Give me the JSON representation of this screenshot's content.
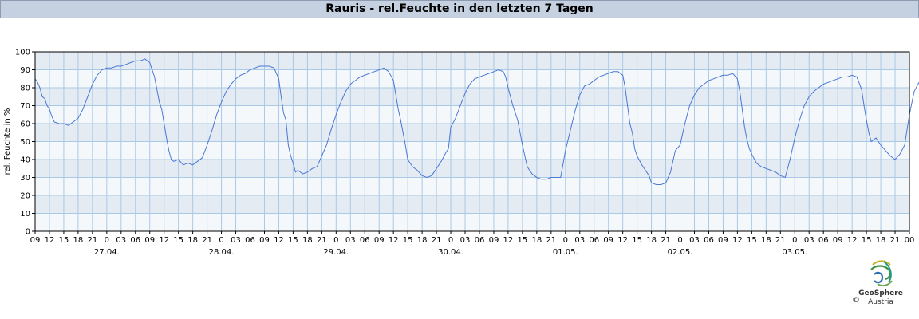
{
  "header": {
    "title": "Rauris - rel.Feuchte in den letzten 7 Tagen"
  },
  "footer": {
    "brand_line1": "GeoSphere",
    "brand_line2": "Austria",
    "copyright": "©"
  },
  "colors": {
    "line": "#4a78d6",
    "band": "#e5ebf2",
    "grid": "#a9c9e6",
    "title_bg": "#c5d1e1"
  },
  "chart_data": {
    "type": "line",
    "title": "Rauris - rel.Feuchte in den letzten 7 Tagen",
    "ylabel": "rel. Feuchte in %",
    "xlabel": "",
    "ylim": [
      0,
      100
    ],
    "y_ticks": [
      0,
      10,
      20,
      30,
      40,
      50,
      60,
      70,
      80,
      90,
      100
    ],
    "x_hour_labels": [
      "09",
      "12",
      "15",
      "18",
      "21",
      "0",
      "03",
      "06",
      "09",
      "12",
      "15",
      "18",
      "21",
      "0",
      "03",
      "06",
      "09",
      "12",
      "15",
      "18",
      "21",
      "0",
      "03",
      "06",
      "09",
      "12",
      "15",
      "18",
      "21",
      "0",
      "03",
      "06",
      "09",
      "12",
      "15",
      "18",
      "21",
      "0",
      "03",
      "06",
      "09",
      "12",
      "15",
      "18",
      "21",
      "0",
      "03",
      "06",
      "09",
      "12",
      "15",
      "18",
      "21",
      "0",
      "03",
      "06",
      "09",
      "12",
      "15",
      "18",
      "21",
      "00"
    ],
    "x_date_labels": [
      "27.04.",
      "28.04.",
      "29.04.",
      "30.04.",
      "01.05.",
      "02.05.",
      "03.05."
    ],
    "grid": true,
    "series": [
      {
        "values": [
          [
            0,
            85
          ],
          [
            0.5,
            83
          ],
          [
            1,
            80
          ],
          [
            1.5,
            75
          ],
          [
            2,
            74
          ],
          [
            2.5,
            70
          ],
          [
            3,
            68
          ],
          [
            3.5,
            64
          ],
          [
            4,
            61
          ],
          [
            5,
            60
          ],
          [
            6,
            60
          ],
          [
            7,
            59
          ],
          [
            8,
            61
          ],
          [
            9,
            63
          ],
          [
            10,
            68
          ],
          [
            11,
            75
          ],
          [
            12,
            82
          ],
          [
            13,
            87
          ],
          [
            14,
            90
          ],
          [
            15,
            91
          ],
          [
            16,
            91
          ],
          [
            17,
            92
          ],
          [
            18,
            92
          ],
          [
            19,
            93
          ],
          [
            20,
            94
          ],
          [
            21,
            95
          ],
          [
            22,
            95
          ],
          [
            23,
            96
          ],
          [
            24,
            94
          ],
          [
            25,
            86
          ],
          [
            26,
            72
          ],
          [
            26.5,
            68
          ],
          [
            27,
            60
          ],
          [
            27.5,
            52
          ],
          [
            28,
            45
          ],
          [
            28.5,
            40
          ],
          [
            29,
            39
          ],
          [
            30,
            40
          ],
          [
            31,
            37
          ],
          [
            32,
            38
          ],
          [
            33,
            37
          ],
          [
            34,
            39
          ],
          [
            35,
            41
          ],
          [
            36,
            48
          ],
          [
            37,
            56
          ],
          [
            38,
            65
          ],
          [
            39,
            72
          ],
          [
            40,
            78
          ],
          [
            41,
            82
          ],
          [
            42,
            85
          ],
          [
            43,
            87
          ],
          [
            44,
            88
          ],
          [
            45,
            90
          ],
          [
            46,
            91
          ],
          [
            47,
            92
          ],
          [
            48,
            92
          ],
          [
            49,
            92
          ],
          [
            50,
            91
          ],
          [
            51,
            85
          ],
          [
            51.5,
            75
          ],
          [
            52,
            66
          ],
          [
            52.5,
            62
          ],
          [
            53,
            48
          ],
          [
            53.5,
            42
          ],
          [
            54,
            38
          ],
          [
            54.5,
            33
          ],
          [
            55,
            34
          ],
          [
            56,
            32
          ],
          [
            57,
            33
          ],
          [
            58,
            35
          ],
          [
            59,
            36
          ],
          [
            60,
            42
          ],
          [
            61,
            48
          ],
          [
            62,
            57
          ],
          [
            63,
            65
          ],
          [
            64,
            72
          ],
          [
            65,
            78
          ],
          [
            66,
            82
          ],
          [
            67,
            84
          ],
          [
            68,
            86
          ],
          [
            69,
            87
          ],
          [
            70,
            88
          ],
          [
            71,
            89
          ],
          [
            72,
            90
          ],
          [
            73,
            91
          ],
          [
            74,
            89
          ],
          [
            75,
            84
          ],
          [
            75.5,
            76
          ],
          [
            76,
            68
          ],
          [
            76.5,
            62
          ],
          [
            77,
            55
          ],
          [
            77.5,
            48
          ],
          [
            78,
            40
          ],
          [
            79,
            36
          ],
          [
            80,
            34
          ],
          [
            81,
            31
          ],
          [
            82,
            30
          ],
          [
            83,
            31
          ],
          [
            84,
            35
          ],
          [
            85,
            39
          ],
          [
            86,
            44
          ],
          [
            86.5,
            46
          ],
          [
            87,
            58
          ],
          [
            88,
            63
          ],
          [
            89,
            70
          ],
          [
            90,
            77
          ],
          [
            91,
            82
          ],
          [
            92,
            85
          ],
          [
            93,
            86
          ],
          [
            94,
            87
          ],
          [
            95,
            88
          ],
          [
            96,
            89
          ],
          [
            97,
            90
          ],
          [
            98,
            89
          ],
          [
            98.5,
            86
          ],
          [
            99,
            80
          ],
          [
            100,
            70
          ],
          [
            101,
            62
          ],
          [
            101.5,
            55
          ],
          [
            102,
            48
          ],
          [
            102.5,
            42
          ],
          [
            103,
            36
          ],
          [
            104,
            32
          ],
          [
            105,
            30
          ],
          [
            106,
            29
          ],
          [
            107,
            29
          ],
          [
            108,
            30
          ],
          [
            109,
            30
          ],
          [
            110,
            30
          ],
          [
            111,
            45
          ],
          [
            112,
            56
          ],
          [
            113,
            67
          ],
          [
            114,
            76
          ],
          [
            115,
            81
          ],
          [
            116,
            82
          ],
          [
            117,
            84
          ],
          [
            118,
            86
          ],
          [
            119,
            87
          ],
          [
            120,
            88
          ],
          [
            121,
            89
          ],
          [
            122,
            89
          ],
          [
            123,
            87
          ],
          [
            123.5,
            80
          ],
          [
            124,
            70
          ],
          [
            124.5,
            60
          ],
          [
            125,
            55
          ],
          [
            125.5,
            46
          ],
          [
            126,
            42
          ],
          [
            127,
            37
          ],
          [
            128,
            33
          ],
          [
            128.5,
            31
          ],
          [
            129,
            27
          ],
          [
            130,
            26
          ],
          [
            131,
            26
          ],
          [
            132,
            27
          ],
          [
            133,
            33
          ],
          [
            134,
            45
          ],
          [
            135,
            48
          ],
          [
            136,
            60
          ],
          [
            137,
            70
          ],
          [
            138,
            76
          ],
          [
            139,
            80
          ],
          [
            140,
            82
          ],
          [
            141,
            84
          ],
          [
            142,
            85
          ],
          [
            143,
            86
          ],
          [
            144,
            87
          ],
          [
            145,
            87
          ],
          [
            146,
            88
          ],
          [
            147,
            85
          ],
          [
            147.5,
            78
          ],
          [
            148,
            68
          ],
          [
            148.5,
            58
          ],
          [
            149,
            51
          ],
          [
            149.5,
            46
          ],
          [
            150,
            43
          ],
          [
            151,
            38
          ],
          [
            152,
            36
          ],
          [
            153,
            35
          ],
          [
            154,
            34
          ],
          [
            155,
            33
          ],
          [
            156,
            31
          ],
          [
            157,
            30
          ],
          [
            158,
            40
          ],
          [
            159,
            52
          ],
          [
            160,
            62
          ],
          [
            161,
            70
          ],
          [
            162,
            75
          ],
          [
            163,
            78
          ],
          [
            164,
            80
          ],
          [
            165,
            82
          ],
          [
            166,
            83
          ],
          [
            167,
            84
          ],
          [
            168,
            85
          ],
          [
            169,
            86
          ],
          [
            170,
            86
          ],
          [
            171,
            87
          ],
          [
            172,
            86
          ],
          [
            173,
            79
          ],
          [
            173.5,
            70
          ],
          [
            174,
            62
          ],
          [
            174.5,
            55
          ],
          [
            175,
            50
          ],
          [
            176,
            52
          ],
          [
            177,
            48
          ],
          [
            178,
            45
          ],
          [
            179,
            42
          ],
          [
            180,
            40
          ],
          [
            181,
            43
          ],
          [
            182,
            48
          ],
          [
            183,
            65
          ],
          [
            184,
            78
          ],
          [
            185,
            83
          ],
          [
            186,
            85
          ],
          [
            187,
            87
          ],
          [
            188,
            88
          ]
        ]
      }
    ]
  }
}
